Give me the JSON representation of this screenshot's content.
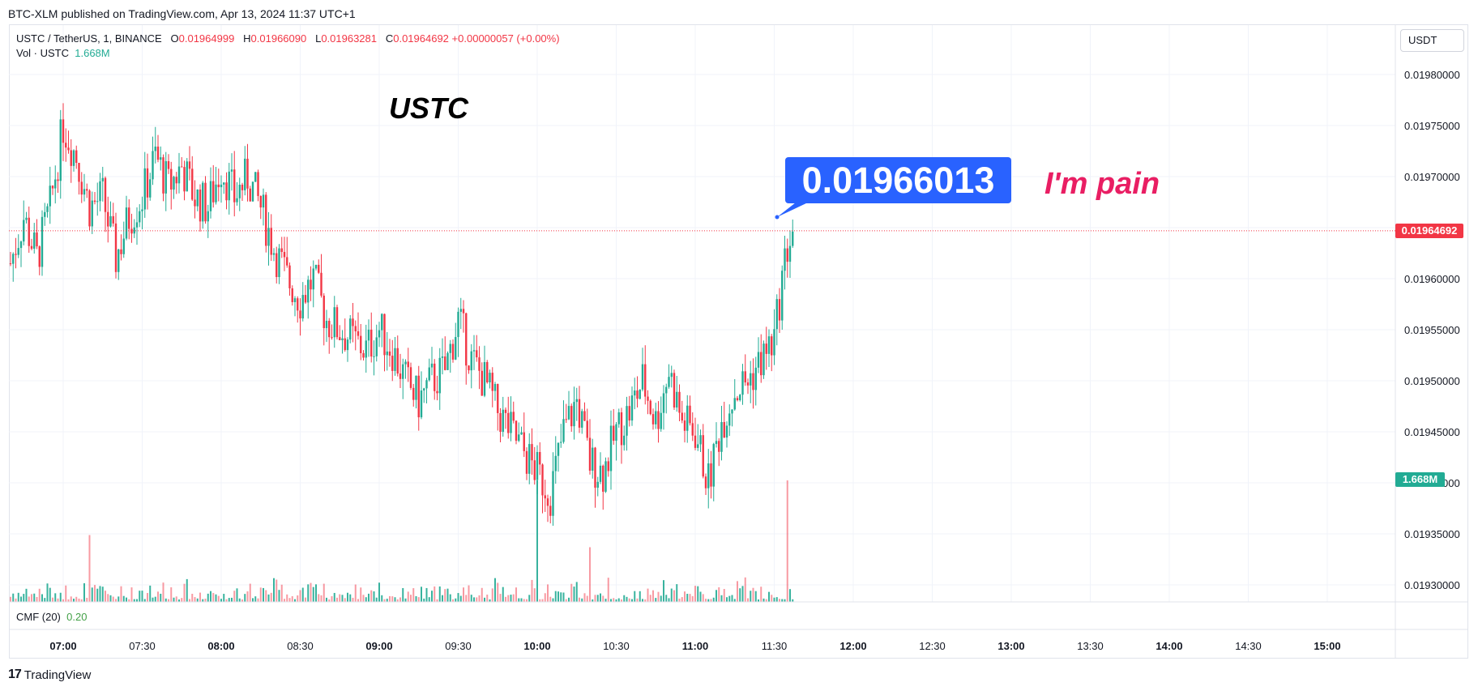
{
  "header": {
    "published": "BTC-XLM published on TradingView.com, Apr 13, 2024 11:37 UTC+1"
  },
  "legend": {
    "symbol": "USTC / TetherUS, 1, BINANCE",
    "open_label": "O",
    "open": "0.01964999",
    "high_label": "H",
    "high": "0.01966090",
    "low_label": "L",
    "low": "0.01963281",
    "close_label": "C",
    "close": "0.01964692",
    "change": "+0.00000057 (+0.00%)",
    "vol_label": "Vol · USTC",
    "vol_value": "1.668M"
  },
  "indicator": {
    "label": "CMF (20)",
    "value": "0.20"
  },
  "currency_button": "USDT",
  "annotations": {
    "title": "USTC",
    "callout": "0.01966013",
    "comment": "I'm pain"
  },
  "price_tag": "0.01964692",
  "volume_tag": "1.668M",
  "brand": {
    "logo": "17",
    "name": "TradingView"
  },
  "colors": {
    "up": "#22ab94",
    "down": "#f23645",
    "callout": "#2962ff",
    "comment": "#e91e63"
  },
  "chart_data": {
    "type": "candlestick",
    "y_axis_ticks": [
      "0.01980000",
      "0.01975000",
      "0.01970000",
      "0.01965000",
      "0.01960000",
      "0.01955000",
      "0.01950000",
      "0.01945000",
      "0.01940000",
      "0.01935000",
      "0.01930000"
    ],
    "x_axis_ticks": [
      "07:00",
      "07:30",
      "08:00",
      "08:30",
      "09:00",
      "09:30",
      "10:00",
      "10:30",
      "11:00",
      "11:30",
      "12:00",
      "12:30",
      "13:00",
      "13:30",
      "14:00",
      "14:30",
      "15:00"
    ],
    "bold_x_ticks": [
      "07:00",
      "08:00",
      "09:00",
      "10:00",
      "11:00",
      "12:00",
      "13:00",
      "14:00",
      "15:00"
    ],
    "ylim": [
      0.019283,
      0.019841
    ],
    "last_price": 0.01964692,
    "close_path": [
      [
        "06:40",
        0.019615
      ],
      [
        "06:45",
        0.01966
      ],
      [
        "06:50",
        0.01962
      ],
      [
        "06:55",
        0.01967
      ],
      [
        "07:00",
        0.01975
      ],
      [
        "07:05",
        0.01972
      ],
      [
        "07:10",
        0.01967
      ],
      [
        "07:15",
        0.01968
      ],
      [
        "07:20",
        0.01962
      ],
      [
        "07:25",
        0.01966
      ],
      [
        "07:30",
        0.01968
      ],
      [
        "07:35",
        0.01972
      ],
      [
        "07:40",
        0.01969
      ],
      [
        "07:45",
        0.01971
      ],
      [
        "07:50",
        0.01968
      ],
      [
        "07:55",
        0.01967
      ],
      [
        "08:00",
        0.01971
      ],
      [
        "08:05",
        0.01968
      ],
      [
        "08:10",
        0.0197
      ],
      [
        "08:15",
        0.01967
      ],
      [
        "08:20",
        0.01963
      ],
      [
        "08:25",
        0.0196
      ],
      [
        "08:30",
        0.01958
      ],
      [
        "08:35",
        0.0196
      ],
      [
        "08:40",
        0.01956
      ],
      [
        "08:45",
        0.01955
      ],
      [
        "08:50",
        0.01954
      ],
      [
        "08:55",
        0.01953
      ],
      [
        "09:00",
        0.01955
      ],
      [
        "09:05",
        0.01953
      ],
      [
        "09:10",
        0.0195
      ],
      [
        "09:15",
        0.01948
      ],
      [
        "09:20",
        0.0195
      ],
      [
        "09:25",
        0.01951
      ],
      [
        "09:30",
        0.01956
      ],
      [
        "09:35",
        0.01952
      ],
      [
        "09:40",
        0.0195
      ],
      [
        "09:45",
        0.01947
      ],
      [
        "09:50",
        0.01945
      ],
      [
        "09:55",
        0.01943
      ],
      [
        "10:00",
        0.01941
      ],
      [
        "10:05",
        0.01939
      ],
      [
        "10:10",
        0.01945
      ],
      [
        "10:15",
        0.01948
      ],
      [
        "10:20",
        0.01942
      ],
      [
        "10:25",
        0.01941
      ],
      [
        "10:30",
        0.01945
      ],
      [
        "10:35",
        0.01947
      ],
      [
        "10:40",
        0.0195
      ],
      [
        "10:45",
        0.01946
      ],
      [
        "10:50",
        0.01951
      ],
      [
        "10:55",
        0.01946
      ],
      [
        "11:00",
        0.01945
      ],
      [
        "11:05",
        0.0194
      ],
      [
        "11:10",
        0.01946
      ],
      [
        "11:15",
        0.01949
      ],
      [
        "11:20",
        0.0195
      ],
      [
        "11:25",
        0.01952
      ],
      [
        "11:30",
        0.01954
      ],
      [
        "11:33",
        0.0196
      ],
      [
        "11:35",
        0.01963
      ],
      [
        "11:37",
        0.01964692
      ]
    ],
    "volume_series": {
      "name": "Vol · USTC",
      "spikes": [
        [
          "07:10",
          "1.668M scale 0.55"
        ],
        [
          "10:00",
          1.0
        ],
        [
          "10:20",
          0.45
        ],
        [
          "11:35",
          1.0
        ]
      ]
    }
  }
}
